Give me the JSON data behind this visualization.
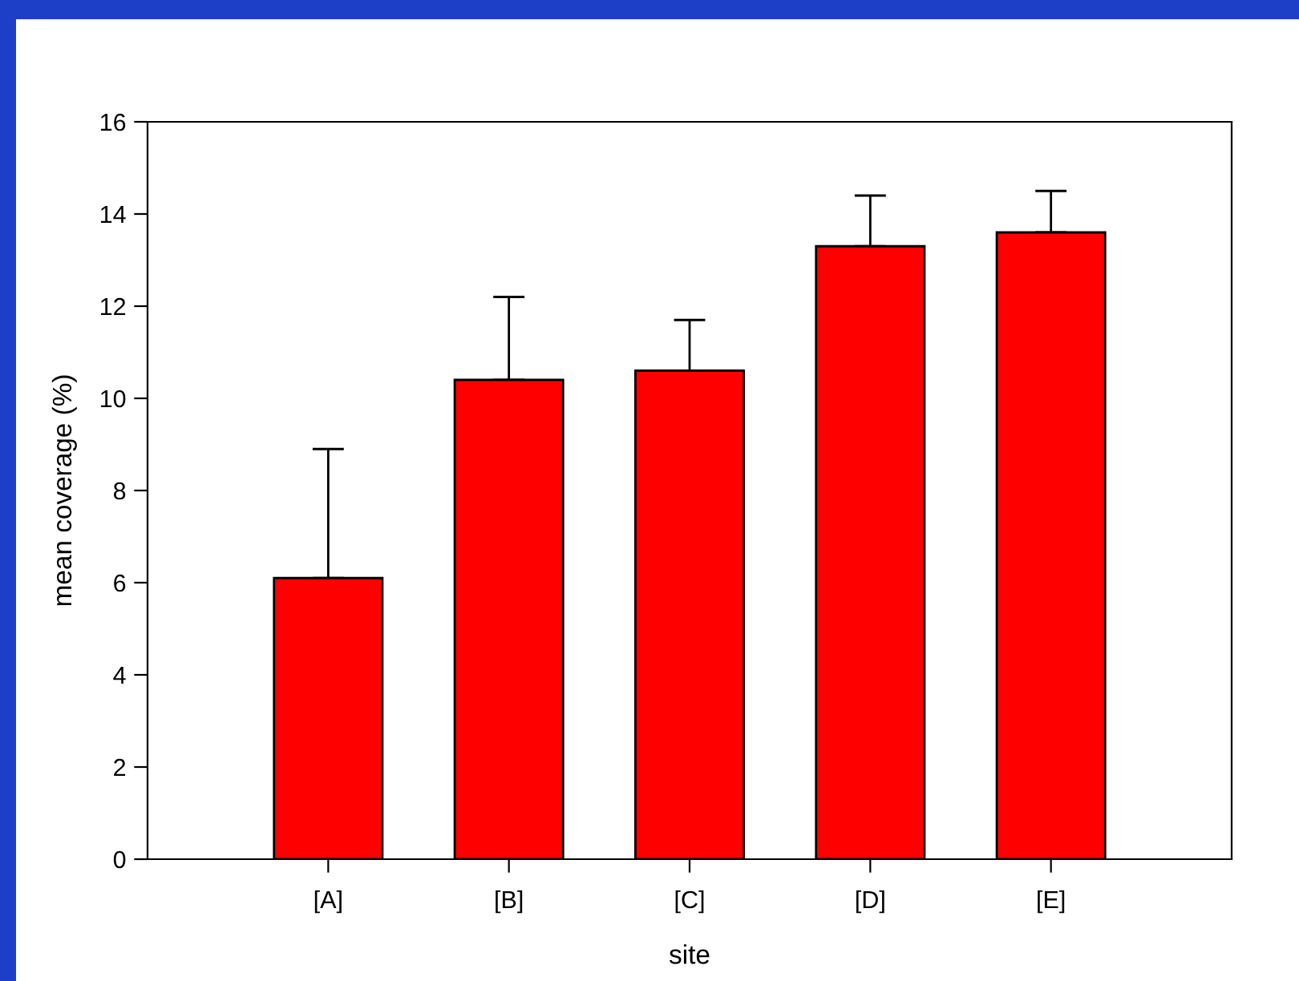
{
  "chart_data": {
    "type": "bar",
    "xlabel": "site",
    "ylabel": "mean coverage (%)",
    "categories": [
      "[A]",
      "[B]",
      "[C]",
      "[D]",
      "[E]"
    ],
    "values": [
      6.1,
      10.4,
      10.6,
      13.3,
      13.6
    ],
    "errors": [
      [
        6.1,
        8.9
      ],
      [
        10.4,
        12.2
      ],
      [
        10.6,
        11.7
      ],
      [
        13.3,
        14.4
      ],
      [
        13.6,
        14.5
      ]
    ],
    "color": "#ff0000",
    "ylim": [
      0,
      16
    ],
    "yticks": [
      0,
      2,
      4,
      6,
      8,
      10,
      12,
      14,
      16
    ],
    "grid": false,
    "legend": false
  }
}
